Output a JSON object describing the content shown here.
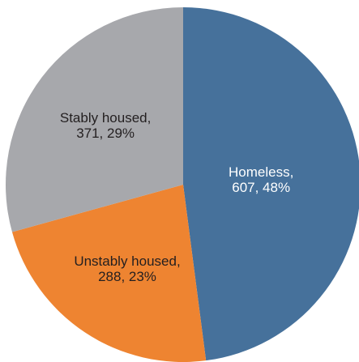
{
  "chart_data": {
    "type": "pie",
    "title": "",
    "start_angle_deg": 0,
    "direction": "clockwise",
    "slices": [
      {
        "name": "Homeless",
        "value": 607,
        "percent": 48,
        "color": "#46719b",
        "label_line1": "Homeless,",
        "label_line2": "607, 48%",
        "label_color": "#ffffff"
      },
      {
        "name": "Unstably housed",
        "value": 288,
        "percent": 23,
        "color": "#ee8431",
        "label_line1": "Unstably housed,",
        "label_line2": "288, 23%",
        "label_color": "#231f20"
      },
      {
        "name": "Stably housed",
        "value": 371,
        "percent": 29,
        "color": "#a7a8ac",
        "label_line1": "Stably housed,",
        "label_line2": "371, 29%",
        "label_color": "#231f20"
      }
    ]
  }
}
